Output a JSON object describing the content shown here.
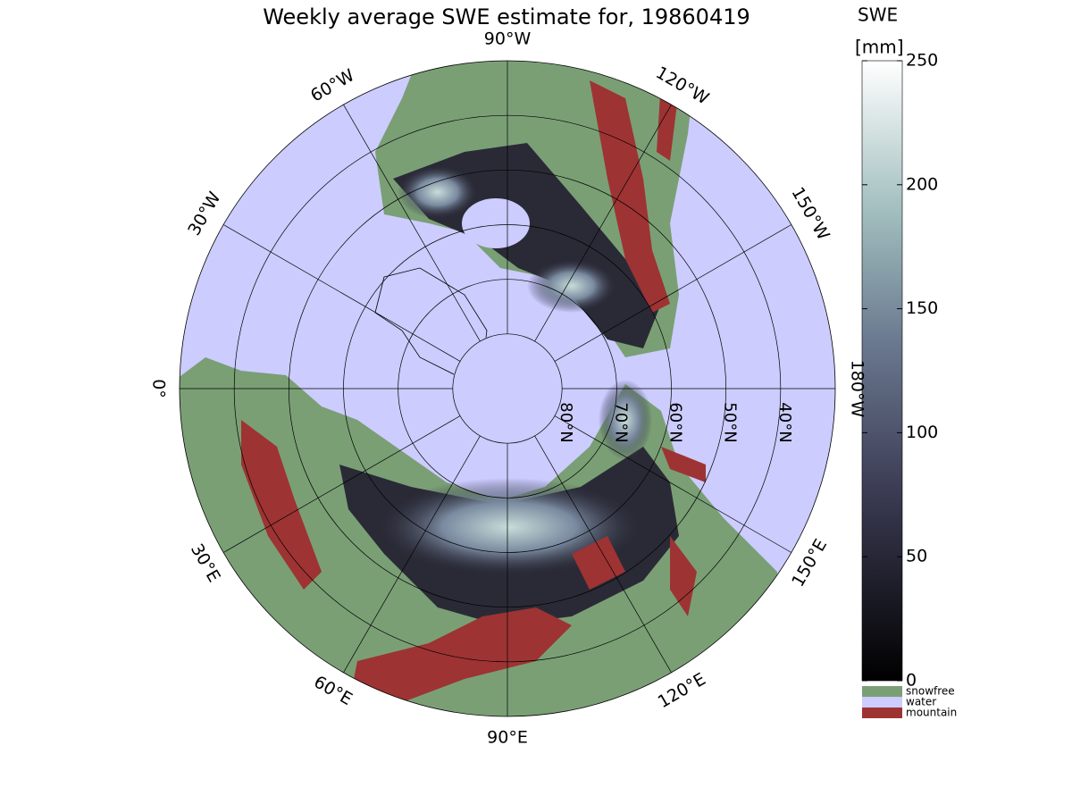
{
  "title": "Weekly average SWE estimate for, 19860419",
  "map": {
    "longitudes": [
      {
        "lon": -90,
        "label": "90°W"
      },
      {
        "lon": -60,
        "label": "60°W"
      },
      {
        "lon": -120,
        "label": "120°W"
      },
      {
        "lon": -30,
        "label": "30°W"
      },
      {
        "lon": -150,
        "label": "150°W"
      },
      {
        "lon": 0,
        "label": "0°"
      },
      {
        "lon": 180,
        "label": "180°W"
      },
      {
        "lon": 30,
        "label": "30°E"
      },
      {
        "lon": 150,
        "label": "150°E"
      },
      {
        "lon": 60,
        "label": "60°E"
      },
      {
        "lon": 120,
        "label": "120°E"
      },
      {
        "lon": 90,
        "label": "90°E"
      }
    ],
    "latitudes": [
      {
        "lat": 80,
        "label": "80°N"
      },
      {
        "lat": 70,
        "label": "70°N"
      },
      {
        "lat": 60,
        "label": "60°N"
      },
      {
        "lat": 50,
        "label": "50°N"
      },
      {
        "lat": 40,
        "label": "40°N"
      }
    ]
  },
  "colorbar": {
    "label": "SWE",
    "unit": "[mm]",
    "lim": [
      0,
      250
    ],
    "ticks": [
      0,
      50,
      100,
      150,
      200,
      250
    ]
  },
  "legend": [
    {
      "name": "snowfree",
      "color": "#7a9f75"
    },
    {
      "name": "water",
      "color": "#ccccff"
    },
    {
      "name": "mountain",
      "color": "#9e3333"
    }
  ]
}
